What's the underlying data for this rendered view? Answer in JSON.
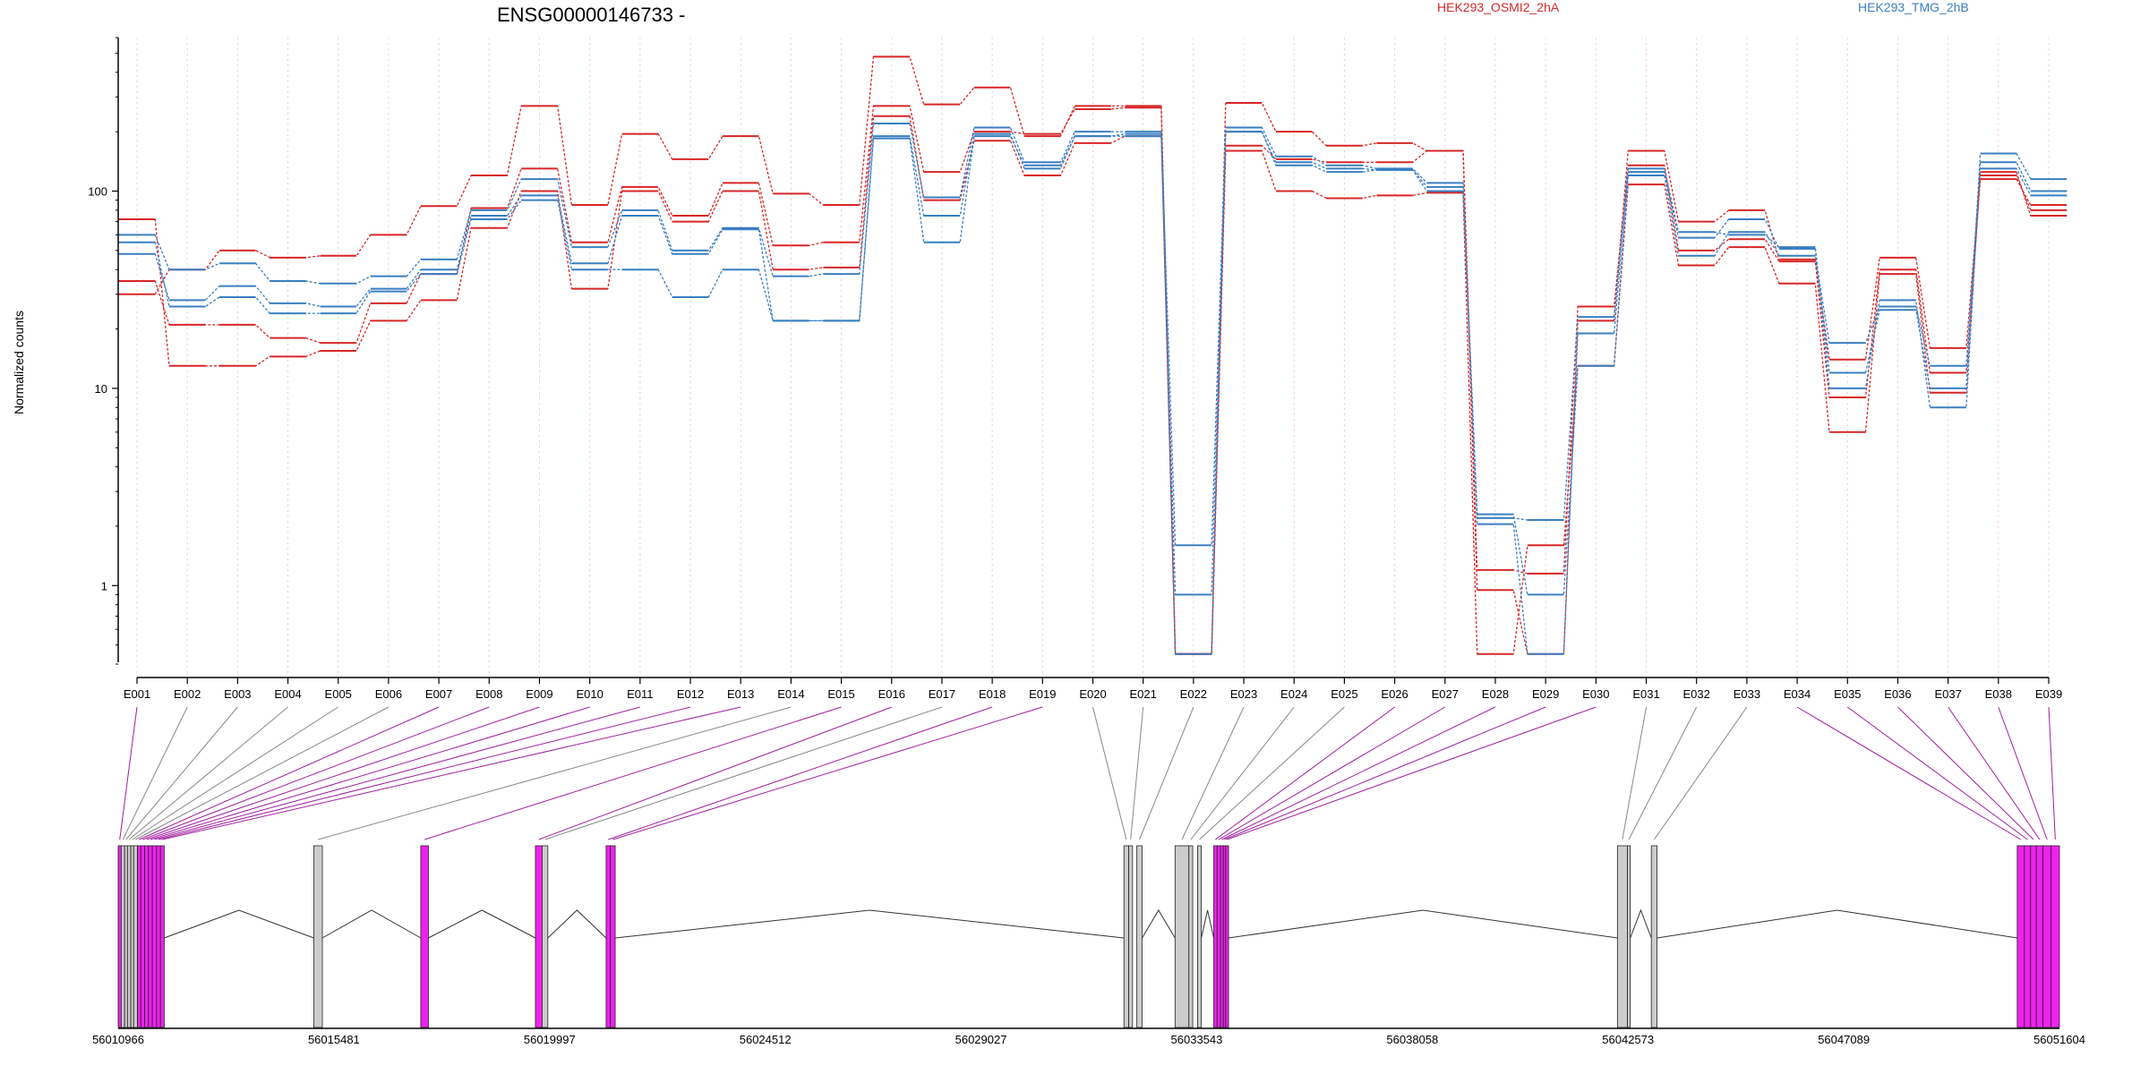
{
  "chart_data": {
    "type": "line",
    "title": "ENSG00000146733 -",
    "ylabel": "Normalized counts",
    "xlabel": "",
    "yscale": "log",
    "ylim": [
      0.4,
      600
    ],
    "yticks": [
      1,
      10,
      100
    ],
    "ytick_labels": [
      "1",
      "10",
      "100"
    ],
    "grid": "vertical dotted",
    "legend_position": "top",
    "colors": {
      "HEK293_OSMI2_2hA": "#d62728",
      "HEK293_TMG_2hB": "#3a7fc1"
    },
    "categories": [
      "E001",
      "E002",
      "E003",
      "E004",
      "E005",
      "E006",
      "E007",
      "E008",
      "E009",
      "E010",
      "E011",
      "E012",
      "E013",
      "E014",
      "E015",
      "E016",
      "E017",
      "E018",
      "E019",
      "E020",
      "E021",
      "E022",
      "E023",
      "E024",
      "E025",
      "E026",
      "E027",
      "E028",
      "E029",
      "E030",
      "E031",
      "E032",
      "E033",
      "E034",
      "E035",
      "E036",
      "E037",
      "E038",
      "E039"
    ],
    "series": [
      {
        "name": "HEK293_OSMI2_2hA",
        "color": "#d62728",
        "values": [
          72,
          13,
          13,
          14.5,
          15.5,
          22,
          28,
          65,
          100,
          32,
          100,
          70,
          100,
          40,
          41,
          240,
          90,
          180,
          120,
          175,
          190,
          0.45,
          160,
          100,
          92,
          95,
          98,
          0.45,
          1.6,
          13,
          108,
          42,
          52,
          34,
          6,
          38,
          9.5,
          125,
          75
        ]
      },
      {
        "name": "HEK293_OSMI2_2hA",
        "color": "#d62728",
        "values": [
          35,
          21,
          21,
          18,
          17,
          27,
          38,
          82,
          130,
          55,
          105,
          75,
          110,
          53,
          55,
          270,
          125,
          200,
          195,
          260,
          265,
          0.45,
          280,
          200,
          170,
          175,
          160,
          0.95,
          0.45,
          22,
          160,
          70,
          80,
          45,
          14,
          46,
          16,
          120,
          80
        ]
      },
      {
        "name": "HEK293_OSMI2_2hA",
        "color": "#d62728",
        "values": [
          30,
          40,
          50,
          46,
          47,
          60,
          84,
          120,
          270,
          85,
          195,
          145,
          190,
          97,
          85,
          480,
          275,
          335,
          190,
          270,
          270,
          0.45,
          170,
          145,
          140,
          140,
          160,
          1.2,
          1.15,
          26,
          135,
          50,
          57,
          44,
          9,
          40,
          12,
          115,
          85
        ]
      },
      {
        "name": "HEK293_TMG_2hB",
        "color": "#3a7fc1",
        "values": [
          60,
          40,
          43,
          35,
          34,
          37,
          45,
          80,
          115,
          52,
          80,
          50,
          65,
          37,
          38,
          220,
          93,
          210,
          140,
          200,
          200,
          1.6,
          210,
          150,
          135,
          130,
          110,
          2.2,
          2.15,
          23,
          130,
          62,
          60,
          52,
          12,
          25,
          10,
          155,
          115
        ]
      },
      {
        "name": "HEK293_TMG_2hB",
        "color": "#3a7fc1",
        "values": [
          48,
          28,
          33,
          27,
          26,
          32,
          40,
          75,
          95,
          43,
          75,
          48,
          64,
          22,
          22,
          190,
          75,
          195,
          130,
          190,
          195,
          0.45,
          200,
          135,
          125,
          128,
          105,
          2.05,
          0.45,
          19,
          125,
          58,
          72,
          51,
          10,
          28,
          8,
          140,
          100
        ]
      },
      {
        "name": "HEK293_TMG_2hB",
        "color": "#3a7fc1",
        "values": [
          55,
          26,
          29,
          24,
          24,
          31,
          38,
          72,
          90,
          40,
          40,
          29,
          40,
          22,
          22,
          185,
          55,
          190,
          135,
          190,
          190,
          0.9,
          200,
          140,
          130,
          128,
          100,
          2.3,
          0.9,
          13,
          120,
          47,
          62,
          47,
          17,
          26,
          13,
          130,
          95
        ]
      }
    ]
  },
  "legend": {
    "series_a": "HEK293_OSMI2_2hA",
    "series_b": "HEK293_TMG_2hB"
  },
  "gene_model": {
    "genome_ticks": [
      "56010966",
      "56015481",
      "56019997",
      "56024512",
      "56029027",
      "56033543",
      "56038058",
      "56042573",
      "56047089",
      "56051604"
    ],
    "genome_tick_values": [
      56010966,
      56015481,
      56019997,
      56024512,
      56029027,
      56033543,
      56038058,
      56042573,
      56047089,
      56051604
    ],
    "range": [
      56010966,
      56051604
    ],
    "highlight_color": "#ee22ee",
    "exons": [
      {
        "id": "E001",
        "start": 56010966,
        "end": 56011030,
        "highlight": true
      },
      {
        "id": "E002",
        "start": 56011030,
        "end": 56011100,
        "highlight": false
      },
      {
        "id": "E003",
        "start": 56011100,
        "end": 56011160,
        "highlight": false
      },
      {
        "id": "E004",
        "start": 56011160,
        "end": 56011230,
        "highlight": false
      },
      {
        "id": "E005",
        "start": 56011230,
        "end": 56011290,
        "highlight": false
      },
      {
        "id": "E006",
        "start": 56011290,
        "end": 56011370,
        "highlight": false
      },
      {
        "id": "E007",
        "start": 56011370,
        "end": 56011440,
        "highlight": true
      },
      {
        "id": "E008",
        "start": 56011440,
        "end": 56011520,
        "highlight": true
      },
      {
        "id": "E009",
        "start": 56011520,
        "end": 56011600,
        "highlight": true
      },
      {
        "id": "E010",
        "start": 56011600,
        "end": 56011680,
        "highlight": true
      },
      {
        "id": "E011",
        "start": 56011680,
        "end": 56011770,
        "highlight": true
      },
      {
        "id": "E012",
        "start": 56011770,
        "end": 56011850,
        "highlight": true
      },
      {
        "id": "E013",
        "start": 56011850,
        "end": 56011930,
        "highlight": true
      },
      {
        "id": "E014",
        "start": 56015060,
        "end": 56015240,
        "highlight": false
      },
      {
        "id": "E015",
        "start": 56017300,
        "end": 56017460,
        "highlight": true
      },
      {
        "id": "E016",
        "start": 56019700,
        "end": 56019840,
        "highlight": true
      },
      {
        "id": "E017",
        "start": 56019840,
        "end": 56019960,
        "highlight": false
      },
      {
        "id": "E018",
        "start": 56021180,
        "end": 56021270,
        "highlight": true
      },
      {
        "id": "E019",
        "start": 56021270,
        "end": 56021370,
        "highlight": true
      },
      {
        "id": "E020",
        "start": 56032020,
        "end": 56032120,
        "highlight": false
      },
      {
        "id": "E021",
        "start": 56032120,
        "end": 56032200,
        "highlight": false
      },
      {
        "id": "E022",
        "start": 56032290,
        "end": 56032400,
        "highlight": false
      },
      {
        "id": "E023",
        "start": 56033090,
        "end": 56033380,
        "highlight": false
      },
      {
        "id": "E024",
        "start": 56033380,
        "end": 56033460,
        "highlight": false
      },
      {
        "id": "E025",
        "start": 56033560,
        "end": 56033640,
        "highlight": false
      },
      {
        "id": "E026",
        "start": 56033900,
        "end": 56033970,
        "highlight": true
      },
      {
        "id": "E027",
        "start": 56033970,
        "end": 56034040,
        "highlight": true
      },
      {
        "id": "E028",
        "start": 56034040,
        "end": 56034100,
        "highlight": true
      },
      {
        "id": "E029",
        "start": 56034100,
        "end": 56034150,
        "highlight": true
      },
      {
        "id": "E030",
        "start": 56034150,
        "end": 56034210,
        "highlight": true
      },
      {
        "id": "E031",
        "start": 56042350,
        "end": 56042560,
        "highlight": false
      },
      {
        "id": "E032",
        "start": 56042560,
        "end": 56042620,
        "highlight": false
      },
      {
        "id": "E033",
        "start": 56043060,
        "end": 56043180,
        "highlight": false
      },
      {
        "id": "E034",
        "start": 56050720,
        "end": 56050870,
        "highlight": true
      },
      {
        "id": "E035",
        "start": 56050870,
        "end": 56051000,
        "highlight": true
      },
      {
        "id": "E036",
        "start": 56051000,
        "end": 56051120,
        "highlight": true
      },
      {
        "id": "E037",
        "start": 56051120,
        "end": 56051260,
        "highlight": true
      },
      {
        "id": "E038",
        "start": 56051260,
        "end": 56051430,
        "highlight": true
      },
      {
        "id": "E039",
        "start": 56051430,
        "end": 56051604,
        "highlight": true
      }
    ]
  }
}
